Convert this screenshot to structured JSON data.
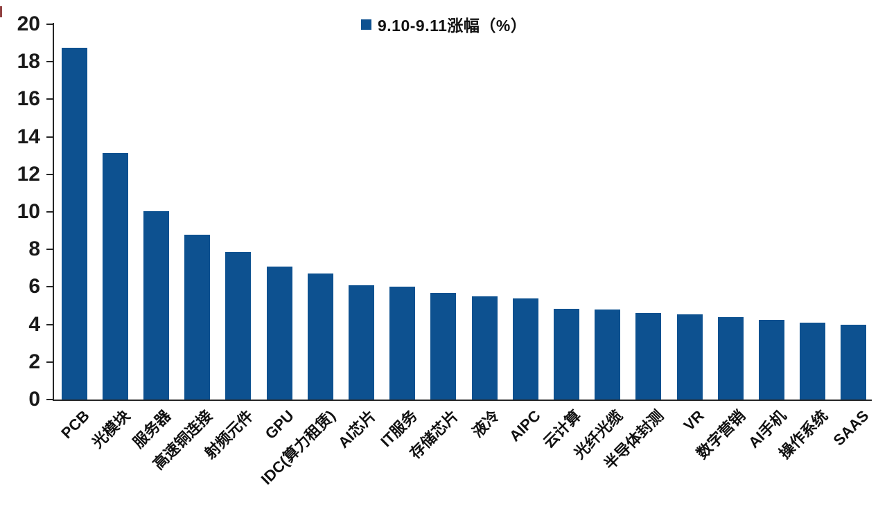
{
  "legend": {
    "label": "9.10-9.11涨幅（%）",
    "swatch_color": "#0d5190"
  },
  "chart_data": {
    "type": "bar",
    "title": "",
    "series_name": "9.10-9.11涨幅（%）",
    "categories": [
      "PCB",
      "光模块",
      "服务器",
      "高速铜连接",
      "射频元件",
      "GPU",
      "IDC(算力租赁)",
      "AI芯片",
      "IT服务",
      "存储芯片",
      "液冷",
      "AIPC",
      "云计算",
      "光纤光缆",
      "半导体封测",
      "VR",
      "数字营销",
      "AI手机",
      "操作系统",
      "SAAS"
    ],
    "values": [
      18.75,
      13.15,
      10.05,
      8.8,
      7.85,
      7.1,
      6.7,
      6.1,
      6.0,
      5.7,
      5.5,
      5.4,
      4.85,
      4.8,
      4.6,
      4.55,
      4.4,
      4.25,
      4.1,
      4.0
    ],
    "xlabel": "",
    "ylabel": "",
    "ylim": [
      0,
      20
    ],
    "ytick_step": 2,
    "ytick_labels": [
      "0",
      "2",
      "4",
      "6",
      "8",
      "10",
      "12",
      "14",
      "16",
      "18",
      "20"
    ],
    "grid": false,
    "legend_position": "top-center",
    "bar_color": "#0d5190",
    "axis_color": "#262626",
    "text_color": "#1a1a1a"
  }
}
